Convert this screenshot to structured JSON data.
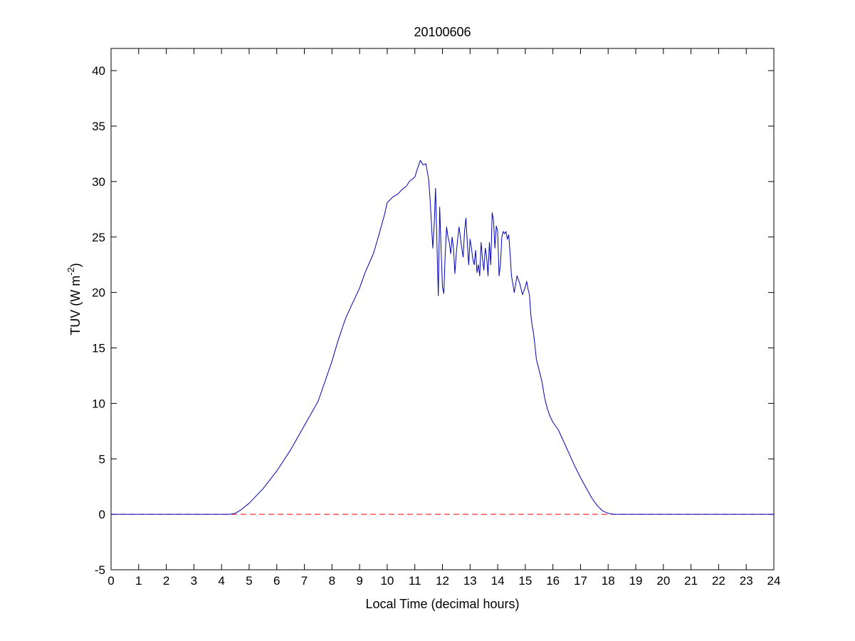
{
  "chart_data": {
    "type": "line",
    "title": "20100606",
    "xlabel": "Local Time (decimal hours)",
    "ylabel_main": "TUV (W m",
    "ylabel_sup": "-2",
    "ylabel_close": ")",
    "xlim": [
      0,
      24
    ],
    "ylim": [
      -5,
      42
    ],
    "xticks": [
      0,
      1,
      2,
      3,
      4,
      5,
      6,
      7,
      8,
      9,
      10,
      11,
      12,
      13,
      14,
      15,
      16,
      17,
      18,
      19,
      20,
      21,
      22,
      23,
      24
    ],
    "yticks": [
      -5,
      0,
      5,
      10,
      15,
      20,
      25,
      30,
      35,
      40
    ],
    "grid": false,
    "colors": {
      "series": "#0000bb",
      "reference": "#ff0000"
    },
    "reference_line": {
      "y": 0,
      "style": "dashed"
    },
    "series": [
      {
        "x": [
          0,
          4.3,
          4.5,
          4.7,
          5.0,
          5.5,
          6.0,
          6.5,
          7.0,
          7.5,
          8.0,
          8.2,
          8.4,
          8.5,
          8.7,
          9.0,
          9.2,
          9.5,
          9.7,
          9.9,
          10.0,
          10.2,
          10.4,
          10.5,
          10.7,
          10.8,
          11.0,
          11.1,
          11.2,
          11.3,
          11.4,
          11.5,
          11.55,
          11.6,
          11.65,
          11.7,
          11.75,
          11.8,
          11.85,
          11.9,
          11.95,
          12.0,
          12.05,
          12.1,
          12.15,
          12.2,
          12.25,
          12.3,
          12.35,
          12.4,
          12.45,
          12.5,
          12.55,
          12.6,
          12.7,
          12.75,
          12.8,
          12.85,
          12.9,
          12.95,
          13.0,
          13.05,
          13.1,
          13.15,
          13.2,
          13.25,
          13.3,
          13.35,
          13.4,
          13.45,
          13.5,
          13.55,
          13.6,
          13.65,
          13.7,
          13.75,
          13.8,
          13.85,
          13.9,
          13.95,
          14.0,
          14.05,
          14.1,
          14.15,
          14.2,
          14.25,
          14.3,
          14.35,
          14.4,
          14.45,
          14.5,
          14.6,
          14.7,
          14.8,
          14.9,
          15.0,
          15.05,
          15.1,
          15.15,
          15.2,
          15.25,
          15.3,
          15.35,
          15.4,
          15.5,
          15.6,
          15.7,
          15.8,
          15.9,
          16.0,
          16.2,
          16.4,
          16.6,
          16.8,
          17.0,
          17.2,
          17.4,
          17.6,
          17.8,
          18.0,
          18.2,
          18.5,
          18.8,
          19.0,
          19.3,
          19.6,
          19.8,
          20.0,
          24
        ],
        "values": [
          0,
          0,
          0.1,
          0.4,
          1.0,
          2.3,
          3.9,
          5.8,
          8.0,
          10.2,
          13.8,
          15.5,
          17.0,
          17.7,
          18.8,
          20.4,
          21.8,
          23.5,
          25.2,
          27.0,
          28.1,
          28.6,
          28.9,
          29.2,
          29.6,
          30.0,
          30.4,
          31.2,
          31.9,
          31.5,
          31.6,
          30.2,
          28.5,
          26.3,
          24.0,
          26.0,
          29.4,
          24.5,
          19.7,
          27.7,
          24.0,
          20.5,
          19.9,
          23.5,
          25.9,
          25.0,
          24.5,
          23.5,
          25.0,
          24.0,
          21.7,
          23.5,
          24.8,
          25.9,
          24.0,
          23.2,
          25.5,
          26.7,
          24.5,
          22.5,
          24.8,
          24.0,
          23.0,
          22.5,
          23.8,
          21.8,
          22.5,
          21.5,
          24.5,
          23.0,
          22.0,
          24.0,
          23.2,
          21.5,
          24.5,
          22.5,
          27.2,
          26.5,
          24.0,
          26.0,
          25.5,
          21.5,
          22.5,
          25.0,
          25.5,
          25.3,
          25.5,
          24.8,
          25.2,
          23.5,
          21.5,
          20.0,
          21.5,
          20.8,
          19.8,
          20.5,
          21.0,
          20.3,
          19.8,
          18.0,
          17.0,
          16.3,
          15.2,
          14.0,
          13.0,
          12.0,
          10.5,
          9.5,
          8.8,
          8.3,
          7.6,
          6.5,
          5.4,
          4.3,
          3.3,
          2.4,
          1.5,
          0.8,
          0.3,
          0.1,
          0,
          0,
          0,
          0,
          0,
          0,
          0,
          0,
          0
        ]
      }
    ]
  }
}
